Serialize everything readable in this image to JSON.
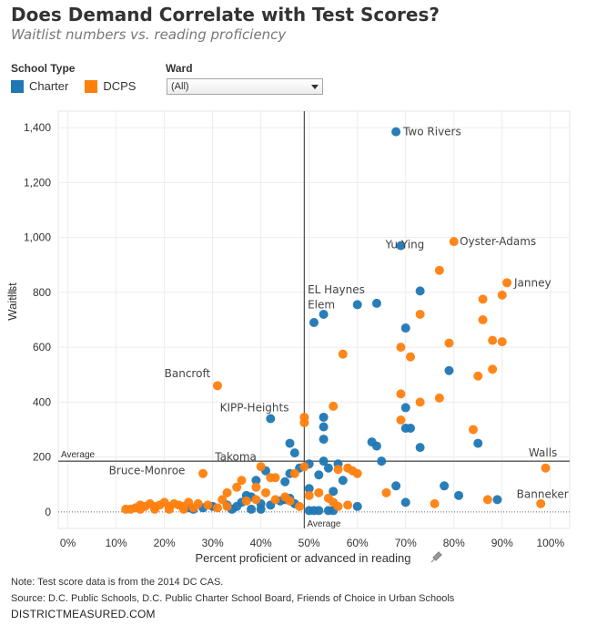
{
  "header": {
    "title": "Does Demand Correlate with Test Scores?",
    "subtitle": "Waitlist numbers vs. reading proficiency"
  },
  "legend": {
    "title": "School Type",
    "items": [
      {
        "label": "Charter",
        "color": "#1f77b4"
      },
      {
        "label": "DCPS",
        "color": "#ff7f0e"
      }
    ]
  },
  "filter": {
    "title": "Ward",
    "selected": "(All)"
  },
  "notes": {
    "line1": "Note: Test score data is from the 2014 DC CAS.",
    "line2": "Source: D.C. Public Schools, D.C. Public Charter School Board, Friends of Choice in Urban Schools"
  },
  "brand": "DISTRICTMEASURED.COM",
  "chart_data": {
    "type": "scatter",
    "xlabel": "Percent proficient or advanced in reading",
    "ylabel": "Waitlist",
    "xlim": [
      -0.02,
      1.04
    ],
    "ylim": [
      -60,
      1460
    ],
    "x_ticks": [
      {
        "v": 0,
        "label": "0%"
      },
      {
        "v": 0.1,
        "label": "10%"
      },
      {
        "v": 0.2,
        "label": "20%"
      },
      {
        "v": 0.3,
        "label": "30%"
      },
      {
        "v": 0.4,
        "label": "40%"
      },
      {
        "v": 0.5,
        "label": "50%"
      },
      {
        "v": 0.6,
        "label": "60%"
      },
      {
        "v": 0.7,
        "label": "70%"
      },
      {
        "v": 0.8,
        "label": "80%"
      },
      {
        "v": 0.9,
        "label": "90%"
      },
      {
        "v": 1.0,
        "label": "100%"
      }
    ],
    "y_ticks": [
      {
        "v": 0,
        "label": "0"
      },
      {
        "v": 200,
        "label": "200"
      },
      {
        "v": 400,
        "label": "400"
      },
      {
        "v": 600,
        "label": "600"
      },
      {
        "v": 800,
        "label": "800"
      },
      {
        "v": 1000,
        "label": "1,000"
      },
      {
        "v": 1200,
        "label": "1,200"
      },
      {
        "v": 1400,
        "label": "1,400"
      }
    ],
    "grid": true,
    "average_x": 0.49,
    "average_y": 185,
    "average_label": "Average",
    "series": [
      {
        "name": "Charter",
        "color": "#1f77b4",
        "points": [
          [
            0.68,
            1385
          ],
          [
            0.69,
            970
          ],
          [
            0.73,
            805
          ],
          [
            0.64,
            760
          ],
          [
            0.6,
            755
          ],
          [
            0.53,
            720
          ],
          [
            0.51,
            690
          ],
          [
            0.7,
            670
          ],
          [
            0.79,
            515
          ],
          [
            0.7,
            380
          ],
          [
            0.53,
            345
          ],
          [
            0.42,
            340
          ],
          [
            0.53,
            310
          ],
          [
            0.7,
            305
          ],
          [
            0.71,
            305
          ],
          [
            0.53,
            265
          ],
          [
            0.63,
            255
          ],
          [
            0.64,
            240
          ],
          [
            0.46,
            250
          ],
          [
            0.73,
            235
          ],
          [
            0.85,
            250
          ],
          [
            0.47,
            215
          ],
          [
            0.65,
            185
          ],
          [
            0.53,
            185
          ],
          [
            0.5,
            175
          ],
          [
            0.56,
            175
          ],
          [
            0.48,
            160
          ],
          [
            0.54,
            160
          ],
          [
            0.41,
            150
          ],
          [
            0.46,
            140
          ],
          [
            0.52,
            135
          ],
          [
            0.57,
            115
          ],
          [
            0.39,
            115
          ],
          [
            0.45,
            110
          ],
          [
            0.68,
            95
          ],
          [
            0.78,
            95
          ],
          [
            0.81,
            60
          ],
          [
            0.89,
            45
          ],
          [
            0.7,
            35
          ],
          [
            0.6,
            20
          ],
          [
            0.55,
            75
          ],
          [
            0.5,
            85
          ],
          [
            0.46,
            50
          ],
          [
            0.44,
            40
          ],
          [
            0.38,
            55
          ],
          [
            0.37,
            60
          ],
          [
            0.36,
            35
          ],
          [
            0.4,
            30
          ],
          [
            0.42,
            25
          ],
          [
            0.35,
            20
          ],
          [
            0.33,
            25
          ],
          [
            0.3,
            20
          ],
          [
            0.28,
            15
          ],
          [
            0.26,
            10
          ],
          [
            0.25,
            15
          ],
          [
            0.4,
            10
          ],
          [
            0.5,
            5
          ],
          [
            0.51,
            5
          ],
          [
            0.52,
            5
          ],
          [
            0.54,
            5
          ],
          [
            0.55,
            5
          ],
          [
            0.45,
            45
          ],
          [
            0.47,
            30
          ],
          [
            0.38,
            10
          ],
          [
            0.34,
            10
          ]
        ]
      },
      {
        "name": "DCPS",
        "color": "#ff7f0e",
        "points": [
          [
            0.8,
            985
          ],
          [
            0.91,
            835
          ],
          [
            0.77,
            880
          ],
          [
            0.9,
            790
          ],
          [
            0.86,
            775
          ],
          [
            0.73,
            720
          ],
          [
            0.86,
            700
          ],
          [
            0.88,
            625
          ],
          [
            0.9,
            620
          ],
          [
            0.79,
            615
          ],
          [
            0.69,
            600
          ],
          [
            0.57,
            575
          ],
          [
            0.71,
            565
          ],
          [
            0.88,
            520
          ],
          [
            0.85,
            495
          ],
          [
            0.31,
            460
          ],
          [
            0.69,
            430
          ],
          [
            0.73,
            400
          ],
          [
            0.77,
            415
          ],
          [
            0.55,
            385
          ],
          [
            0.49,
            345
          ],
          [
            0.49,
            325
          ],
          [
            0.69,
            335
          ],
          [
            0.84,
            300
          ],
          [
            0.99,
            160
          ],
          [
            0.58,
            160
          ],
          [
            0.59,
            150
          ],
          [
            0.6,
            140
          ],
          [
            0.56,
            155
          ],
          [
            0.49,
            165
          ],
          [
            0.47,
            140
          ],
          [
            0.43,
            125
          ],
          [
            0.42,
            125
          ],
          [
            0.4,
            165
          ],
          [
            0.36,
            115
          ],
          [
            0.35,
            90
          ],
          [
            0.33,
            70
          ],
          [
            0.39,
            90
          ],
          [
            0.41,
            70
          ],
          [
            0.43,
            45
          ],
          [
            0.45,
            55
          ],
          [
            0.46,
            40
          ],
          [
            0.5,
            60
          ],
          [
            0.52,
            70
          ],
          [
            0.54,
            50
          ],
          [
            0.55,
            35
          ],
          [
            0.56,
            20
          ],
          [
            0.58,
            25
          ],
          [
            0.28,
            140
          ],
          [
            0.29,
            25
          ],
          [
            0.27,
            30
          ],
          [
            0.25,
            35
          ],
          [
            0.24,
            20
          ],
          [
            0.23,
            25
          ],
          [
            0.22,
            30
          ],
          [
            0.21,
            20
          ],
          [
            0.2,
            35
          ],
          [
            0.19,
            25
          ],
          [
            0.18,
            20
          ],
          [
            0.17,
            30
          ],
          [
            0.16,
            20
          ],
          [
            0.15,
            25
          ],
          [
            0.14,
            15
          ],
          [
            0.13,
            10
          ],
          [
            0.12,
            10
          ],
          [
            0.15,
            10
          ],
          [
            0.18,
            10
          ],
          [
            0.21,
            10
          ],
          [
            0.24,
            10
          ],
          [
            0.26,
            15
          ],
          [
            0.31,
            15
          ],
          [
            0.33,
            20
          ],
          [
            0.66,
            70
          ],
          [
            0.76,
            30
          ],
          [
            0.87,
            45
          ],
          [
            0.98,
            30
          ],
          [
            0.37,
            40
          ],
          [
            0.39,
            45
          ],
          [
            0.48,
            20
          ],
          [
            0.32,
            45
          ]
        ]
      }
    ],
    "annotations": [
      {
        "text": "Two Rivers",
        "x": 0.695,
        "y": 1385,
        "anchor": "start",
        "dy": 4
      },
      {
        "text": "Yu Ying",
        "x": 0.658,
        "y": 1000,
        "anchor": "start",
        "dy": 12
      },
      {
        "text": "Oyster-Adams",
        "x": 0.812,
        "y": 985,
        "anchor": "start",
        "dy": 4
      },
      {
        "text": "Janney",
        "x": 0.925,
        "y": 835,
        "anchor": "start",
        "dy": 4
      },
      {
        "text": "EL Haynes",
        "x": 0.497,
        "y": 810,
        "anchor": "start",
        "dy": 4
      },
      {
        "text": "Elem",
        "x": 0.497,
        "y": 755,
        "anchor": "start",
        "dy": 4
      },
      {
        "text": "Bancroft",
        "x": 0.2,
        "y": 505,
        "anchor": "start",
        "dy": 4
      },
      {
        "text": "KIPP-Heights",
        "x": 0.315,
        "y": 380,
        "anchor": "start",
        "dy": 4
      },
      {
        "text": "Takoma",
        "x": 0.305,
        "y": 200,
        "anchor": "start",
        "dy": 4
      },
      {
        "text": "Bruce-Monroe",
        "x": 0.085,
        "y": 150,
        "anchor": "start",
        "dy": 4
      },
      {
        "text": "Walls",
        "x": 0.955,
        "y": 215,
        "anchor": "start",
        "dy": 4
      },
      {
        "text": "Banneker",
        "x": 0.93,
        "y": 65,
        "anchor": "start",
        "dy": 4
      }
    ]
  }
}
